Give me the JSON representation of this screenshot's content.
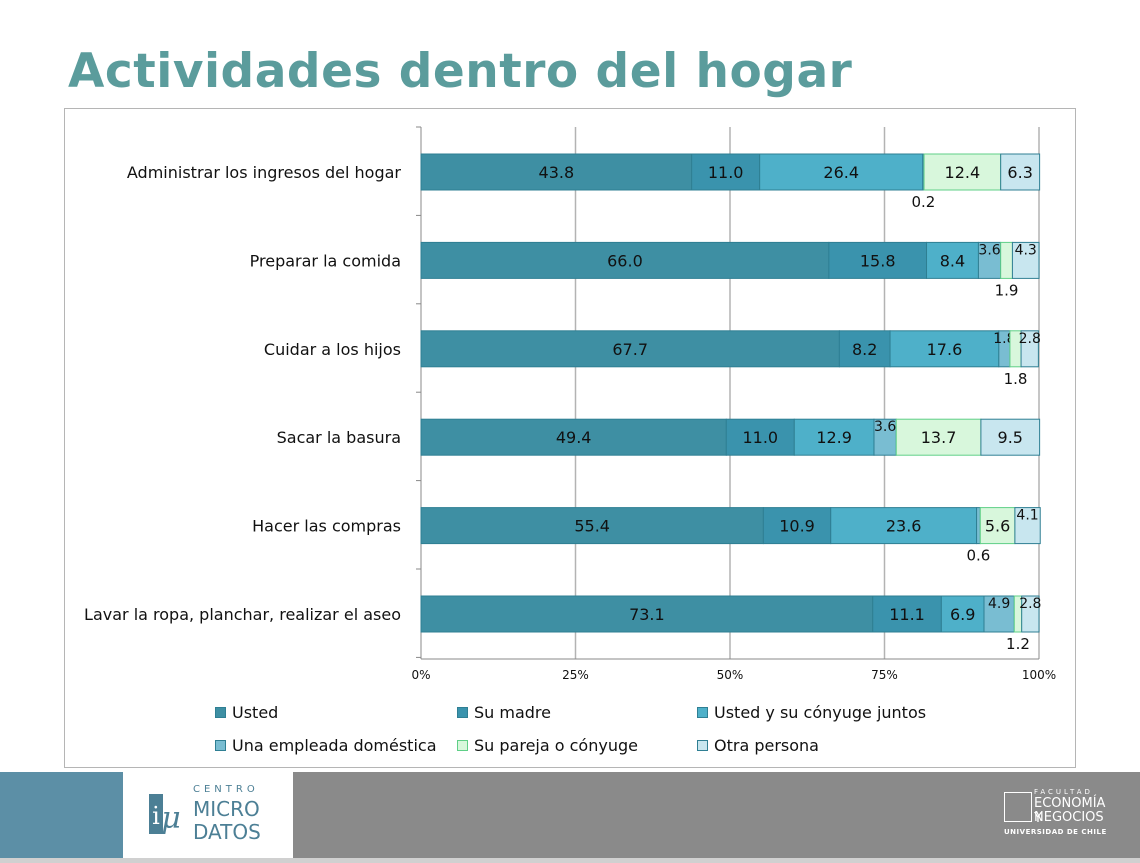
{
  "page": {
    "title": "Actividades dentro del hogar"
  },
  "chart_data": {
    "type": "bar",
    "orientation": "horizontal",
    "stacked": true,
    "title": "",
    "xlabel": "",
    "ylabel": "",
    "xlim": [
      0,
      100
    ],
    "xticks": [
      "0%",
      "25%",
      "50%",
      "75%",
      "100%"
    ],
    "grid": true,
    "legend_position": "bottom",
    "categories": [
      "Administrar los ingresos del hogar",
      "Preparar la comida",
      "Cuidar a los hijos",
      "Sacar la basura",
      "Hacer las compras",
      "Lavar la ropa, planchar, realizar el aseo"
    ],
    "series": [
      {
        "name": "Usted",
        "color": "#3e8fa3",
        "values": [
          43.8,
          66.0,
          67.7,
          49.4,
          55.4,
          73.1
        ],
        "labels": [
          "43.8",
          "66.0",
          "67.7",
          "49.4",
          "55.4",
          "73.1"
        ]
      },
      {
        "name": "Su madre",
        "color": "#3a93ad",
        "values": [
          11.0,
          15.8,
          8.2,
          11.0,
          10.9,
          11.1
        ],
        "labels": [
          "11.0",
          "15.8",
          "8.2",
          "11.0",
          "10.9",
          "11.1"
        ]
      },
      {
        "name": "Usted y su cónyuge juntos",
        "color": "#4eb0c9",
        "values": [
          26.4,
          8.4,
          17.6,
          12.9,
          23.6,
          6.9
        ],
        "labels": [
          "26.4",
          "8.4",
          "17.6",
          "12.9",
          "23.6",
          "6.9"
        ]
      },
      {
        "name": "Una empleada doméstica",
        "color": "#79bdd2",
        "values": [
          0.2,
          3.6,
          1.8,
          3.6,
          0.6,
          4.9
        ],
        "labels": [
          "0.2",
          "3.6",
          "1.8",
          "3.6",
          "0.6",
          "4.9"
        ]
      },
      {
        "name": "Su pareja o cónyuge",
        "color": "#d8f7dc",
        "values": [
          12.4,
          1.9,
          1.8,
          13.7,
          5.6,
          1.2
        ],
        "labels": [
          "12.4",
          "1.9",
          "1.8",
          "13.7",
          "5.6",
          "1.2"
        ]
      },
      {
        "name": "Otra persona",
        "color": "#c8e6ef",
        "values": [
          6.3,
          4.3,
          2.8,
          9.5,
          4.1,
          2.8
        ],
        "labels": [
          "6.3",
          "4.3",
          "2.8",
          "9.5",
          "4.1",
          "2.8"
        ]
      }
    ]
  },
  "footer": {
    "center_logo": {
      "line1": "CENTRO",
      "line2": "MICRO",
      "line3": "DATOS"
    },
    "faculty_logo": {
      "line1": "FACULTAD",
      "line2": "ECONOMÍA Y",
      "line3": "NEGOCIOS",
      "line4": "UNIVERSIDAD DE CHILE"
    }
  }
}
